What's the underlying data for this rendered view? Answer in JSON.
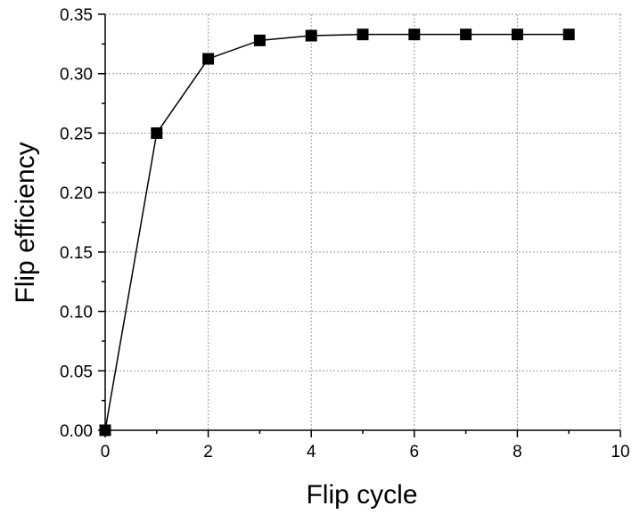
{
  "chart_data": {
    "type": "line",
    "xlabel": "Flip cycle",
    "ylabel": "Flip efficiency",
    "xlim": [
      0,
      10
    ],
    "ylim": [
      0.0,
      0.35
    ],
    "x_ticks": [
      "0",
      "2",
      "4",
      "6",
      "8",
      "10"
    ],
    "x_tick_values": [
      0,
      2,
      4,
      6,
      8,
      10
    ],
    "y_ticks": [
      "0.00",
      "0.05",
      "0.10",
      "0.15",
      "0.20",
      "0.25",
      "0.30",
      "0.35"
    ],
    "y_tick_values": [
      0.0,
      0.05,
      0.1,
      0.15,
      0.2,
      0.25,
      0.3,
      0.35
    ],
    "grid": true,
    "series": [
      {
        "marker": "square",
        "color": "#000000",
        "x": [
          0,
          1,
          2,
          3,
          4,
          5,
          6,
          7,
          8,
          9
        ],
        "y": [
          0.0,
          0.25,
          0.3125,
          0.328,
          0.332,
          0.333,
          0.333,
          0.333,
          0.333,
          0.333
        ]
      }
    ]
  }
}
